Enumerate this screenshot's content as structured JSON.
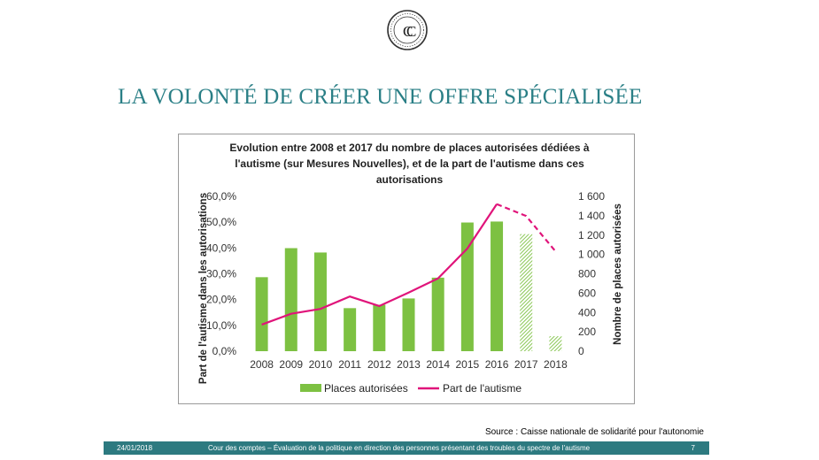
{
  "slide": {
    "title": "LA VOLONTÉ DE CRÉER UNE OFFRE SPÉCIALISÉE",
    "source": "Source : Caisse nationale de solidarité pour l'autonomie",
    "footer": {
      "date": "24/01/2018",
      "text": "Cour des comptes – Évaluation de la politique en direction des personnes présentant des troubles du spectre de l'autisme",
      "page": "7"
    },
    "logo_icon": "cour-des-comptes-seal-icon",
    "accent_color": "#2a7f86",
    "footer_color": "#2d7a80"
  },
  "chart_data": {
    "type": "bar",
    "title_lines": [
      "Evolution entre 2008 et 2017 du nombre de places autorisées dédiées à",
      "l'autisme (sur Mesures Nouvelles), et de la part de l'autisme dans ces",
      "autorisations"
    ],
    "categories": [
      "2008",
      "2009",
      "2010",
      "2011",
      "2012",
      "2013",
      "2014",
      "2015",
      "2016",
      "2017",
      "2018"
    ],
    "y_left": {
      "label": "Part de l'autisme dans les autorisations",
      "ticks": [
        "60,0%",
        "50,0%",
        "40,0%",
        "30,0%",
        "20,0%",
        "10,0%",
        "0,0%"
      ],
      "ylim": [
        0,
        60
      ]
    },
    "y_right": {
      "label": "Nombre de places autorisées",
      "ticks": [
        "1 600",
        "1 400",
        "1 200",
        "1 000",
        "800",
        "600",
        "400",
        "200",
        "0"
      ],
      "ylim": [
        0,
        1600
      ]
    },
    "series": [
      {
        "name": "Places autorisées",
        "kind": "bar",
        "axis": "right",
        "color": "#7dc142",
        "values": [
          765,
          1065,
          1020,
          445,
          480,
          545,
          760,
          1330,
          1340,
          1210,
          155
        ],
        "hatched": [
          false,
          false,
          false,
          false,
          false,
          false,
          false,
          false,
          false,
          true,
          true
        ]
      },
      {
        "name": "Part de l'autisme",
        "kind": "line",
        "axis": "left",
        "color": "#e0147a",
        "values": [
          10.3,
          14.5,
          16.4,
          21.2,
          17.5,
          22.7,
          28.2,
          39.8,
          57.0,
          52.4,
          38.7
        ],
        "dashed_from_index": 8
      }
    ],
    "legend_position": "bottom",
    "grid": false
  }
}
